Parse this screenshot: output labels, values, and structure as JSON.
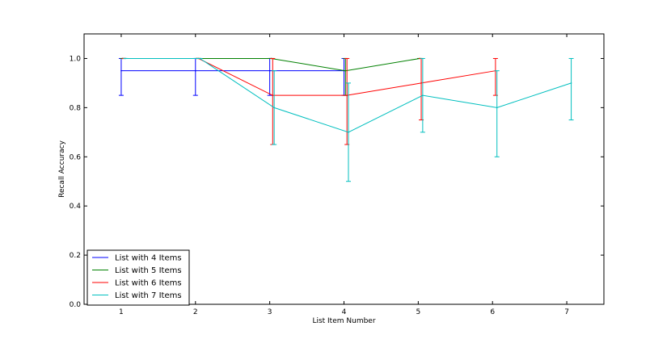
{
  "chart_data": {
    "type": "line",
    "title": "",
    "xlabel": "List Item Number",
    "ylabel": "Recall Accuracy",
    "xlim": [
      0.5,
      7.5
    ],
    "ylim": [
      0.0,
      1.1
    ],
    "xticks": [
      "1",
      "2",
      "3",
      "4",
      "5",
      "6",
      "7"
    ],
    "yticks": [
      "0.0",
      "0.2",
      "0.4",
      "0.6",
      "0.8",
      "1.0"
    ],
    "grid": false,
    "legend_position": "lower-left",
    "series": [
      {
        "name": "List with 4 Items",
        "color": "#0000ff",
        "x": [
          1,
          2,
          3,
          4
        ],
        "y": [
          0.95,
          0.95,
          0.95,
          0.95
        ],
        "err_low": [
          0.85,
          0.85,
          0.85,
          0.85
        ],
        "err_high": [
          1.0,
          1.0,
          1.0,
          1.0
        ]
      },
      {
        "name": "List with 5 Items",
        "color": "#008000",
        "x": [
          1.02,
          2.02,
          3.02,
          4.02,
          5.02
        ],
        "y": [
          1.0,
          1.0,
          1.0,
          0.95,
          1.0
        ],
        "err_low": [
          1.0,
          1.0,
          1.0,
          0.85,
          1.0
        ],
        "err_high": [
          1.0,
          1.0,
          1.0,
          1.0,
          1.0
        ]
      },
      {
        "name": "List with 6 Items",
        "color": "#ff0000",
        "x": [
          1.04,
          2.04,
          3.04,
          4.04,
          5.04,
          6.04
        ],
        "y": [
          1.0,
          1.0,
          0.85,
          0.85,
          0.9,
          0.95
        ],
        "err_low": [
          1.0,
          1.0,
          0.65,
          0.65,
          0.75,
          0.85
        ],
        "err_high": [
          1.0,
          1.0,
          1.0,
          1.0,
          1.0,
          1.0
        ]
      },
      {
        "name": "List with 7 Items",
        "color": "#00bfbf",
        "x": [
          1.06,
          2.06,
          3.06,
          4.06,
          5.06,
          6.06,
          7.06
        ],
        "y": [
          1.0,
          1.0,
          0.8,
          0.7,
          0.85,
          0.8,
          0.9
        ],
        "err_low": [
          1.0,
          1.0,
          0.65,
          0.5,
          0.7,
          0.6,
          0.75
        ],
        "err_high": [
          1.0,
          1.0,
          0.95,
          0.9,
          1.0,
          0.95,
          1.0
        ]
      }
    ]
  }
}
